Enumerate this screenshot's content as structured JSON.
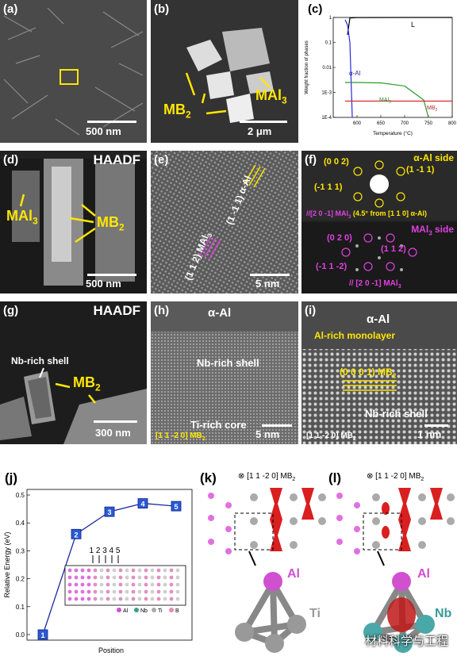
{
  "panels": {
    "a": {
      "label": "(a)",
      "scale": "500 nm"
    },
    "b": {
      "label": "(b)",
      "scale": "2 μm",
      "mai3": "MAl",
      "mai3_sub": "3",
      "mb2": "MB",
      "mb2_sub": "2"
    },
    "c": {
      "label": "(c)",
      "ylabel": "Weight fraction of phases",
      "xlabel": "Temperature (°C)",
      "yticks": [
        "1",
        "0.1",
        "0.01",
        "1E-3",
        "1E-4"
      ],
      "xticks": [
        "600",
        "650",
        "700",
        "750",
        "800"
      ],
      "L": "L",
      "aal": "α-Al",
      "mai3": "MAl",
      "mai3_sub": "3",
      "mb2": "MB",
      "mb2_sub": "2"
    },
    "d": {
      "label": "(d)",
      "tag": "HAADF",
      "mai3": "MAl",
      "mai3_sub": "3",
      "mb2": "MB",
      "mb2_sub": "2",
      "scale": "500 nm"
    },
    "e": {
      "label": "(e)",
      "top": "(1 -1 1) α-Al",
      "bot": "(1 1 2) MAl",
      "bot_sub": "3",
      "scale": "5 nm"
    },
    "f": {
      "label": "(f)",
      "side1": "α-Al side",
      "s002": "(0 0 2)",
      "s1m11": "(1 -1 1)",
      "sm111": "(-1 1 1)",
      "zone": "//[2 0 -1] MAl",
      "zone_sub": "3",
      "zone_tail": " (4.5° from [1 1 0] α-Al)",
      "side2": "MAl",
      "side2_sub": "3",
      "side2_tail": " side",
      "s020": "(0 2 0)",
      "s112": "(1 1 2)",
      "sm11m2": "(-1 1 -2)",
      "zone2": "// [2 0 -1] MAl",
      "zone2_sub": "3"
    },
    "g": {
      "label": "(g)",
      "tag": "HAADF",
      "nb": "Nb-rich shell",
      "mb2": "MB",
      "mb2_sub": "2",
      "scale": "300 nm"
    },
    "h": {
      "label": "(h)",
      "aal": "α-Al",
      "nb": "Nb-rich shell",
      "ti": "Ti-rich core",
      "zone": "[1 1 -2 0] MB",
      "zone_sub": "2",
      "scale": "5 nm"
    },
    "i": {
      "label": "(i)",
      "aal": "α-Al",
      "mono": "Al-rich monolayer",
      "plane": "(0 0 0 1) MB",
      "plane_sub": "2",
      "nb": "Nb-rich shell",
      "zone": "[1 1 -2 0] MB",
      "zone_sub": "2",
      "scale": "1 nm"
    },
    "j": {
      "label": "(j)",
      "ylabel": "Relative Energy (eV)",
      "xlabel": "Position",
      "yticks": [
        "0.0",
        "0.1",
        "0.2",
        "0.3",
        "0.4",
        "0.5"
      ],
      "positions": [
        "1",
        "2",
        "3",
        "4",
        "5"
      ],
      "inset_nums": "1 2 3 4 5",
      "legend": [
        "Al",
        "Nb",
        "Ti",
        "B"
      ]
    },
    "k": {
      "label": "(k)",
      "zone": "[1 1 -2 0] MB",
      "zone_sub": "2",
      "al": "Al",
      "ti": "Ti"
    },
    "l": {
      "label": "(l)",
      "zone": "[1 1 -2 0] MB",
      "zone_sub": "2",
      "al": "Al",
      "nb": "Nb"
    }
  },
  "watermark": "材料科学与工程",
  "chart_data": [
    {
      "type": "line",
      "panel": "c",
      "xlabel": "Temperature (°C)",
      "ylabel": "Weight fraction of phases",
      "xlim": [
        550,
        800
      ],
      "ylim": [
        0.0001,
        1
      ],
      "yscale": "log",
      "series": [
        {
          "name": "L",
          "x": [
            580,
            585,
            600,
            700,
            800
          ],
          "y": [
            0.2,
            0.95,
            0.99,
            0.999,
            1.0
          ]
        },
        {
          "name": "α-Al",
          "x": [
            575,
            580,
            585,
            590
          ],
          "y": [
            0.8,
            0.5,
            0.1,
            0.0001
          ]
        },
        {
          "name": "MAl3",
          "x": [
            575,
            600,
            650,
            700,
            740,
            750
          ],
          "y": [
            0.0025,
            0.0025,
            0.0024,
            0.0018,
            0.0005,
            0.0001
          ]
        },
        {
          "name": "MB2",
          "x": [
            575,
            700,
            800
          ],
          "y": [
            0.00045,
            0.00045,
            0.00045
          ]
        }
      ]
    },
    {
      "type": "line",
      "panel": "j",
      "xlabel": "Position",
      "ylabel": "Relative Energy (eV)",
      "ylim": [
        -0.02,
        0.52
      ],
      "categories": [
        "1",
        "2",
        "3",
        "4",
        "5"
      ],
      "values": [
        0.0,
        0.36,
        0.44,
        0.47,
        0.46
      ]
    }
  ]
}
